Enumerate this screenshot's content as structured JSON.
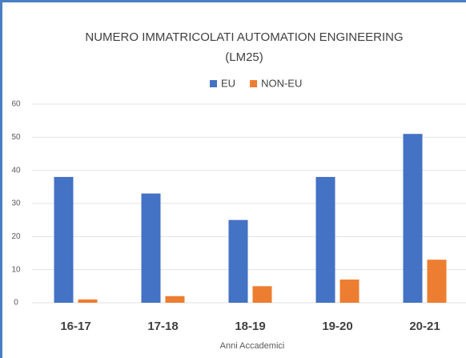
{
  "chart_data": {
    "type": "bar",
    "title": [
      "NUMERO IMMATRICOLATI AUTOMATION ENGINEERING",
      "(LM25)"
    ],
    "categories": [
      "16-17",
      "17-18",
      "18-19",
      "19-20",
      "20-21"
    ],
    "series": [
      {
        "name": "EU",
        "color": "#4472c4",
        "values": [
          38,
          33,
          25,
          38,
          51
        ]
      },
      {
        "name": "NON-EU",
        "color": "#ed7d31",
        "values": [
          1,
          2,
          5,
          7,
          13
        ]
      }
    ],
    "xlabel": "Anni Accademici",
    "ylim": [
      0,
      60
    ],
    "yticks": [
      0,
      10,
      20,
      30,
      40,
      50,
      60
    ],
    "grid": true,
    "legend": "top"
  }
}
